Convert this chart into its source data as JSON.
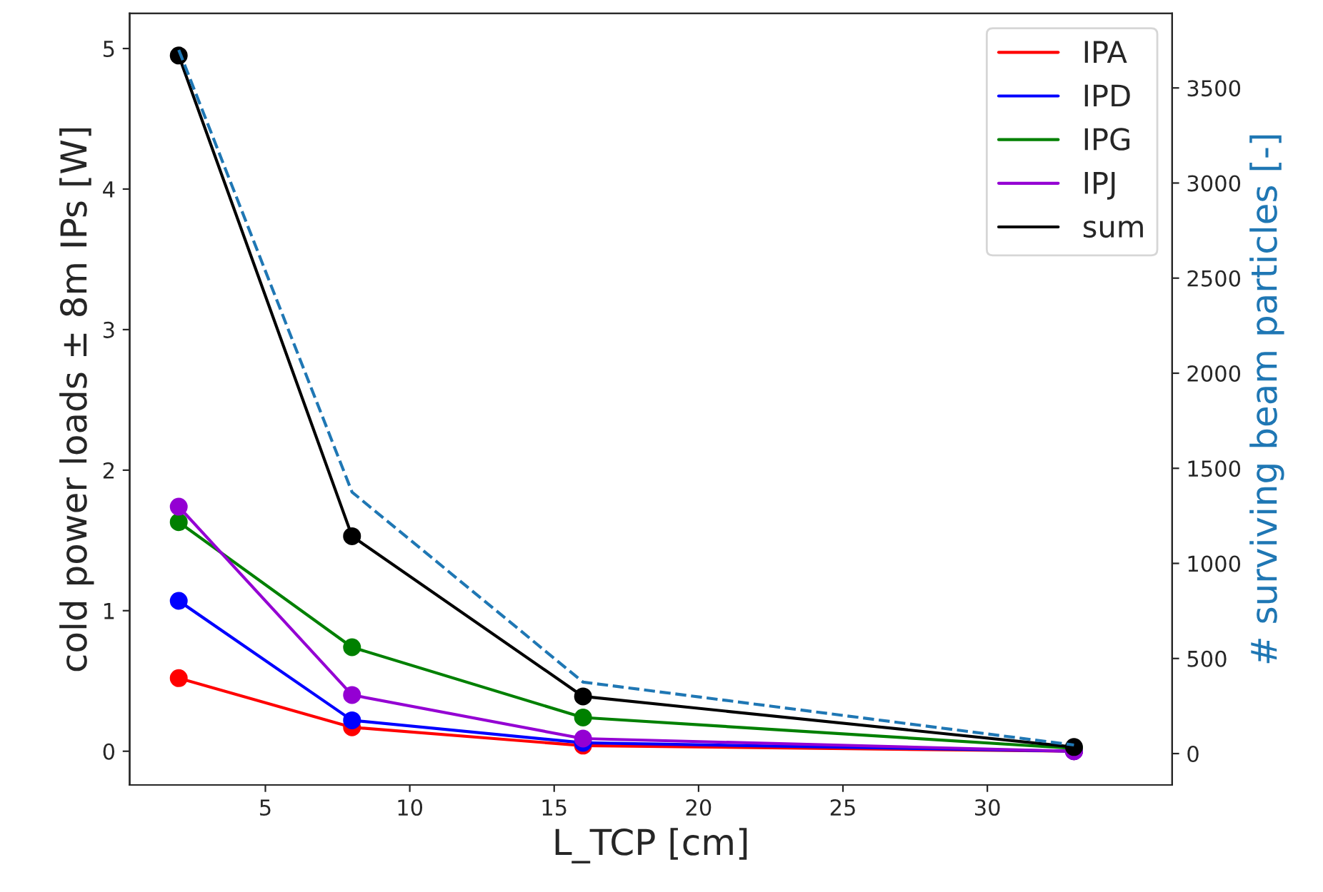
{
  "chart_data": {
    "type": "line",
    "xlabel": "L_TCP [cm]",
    "ylabel": "cold power loads ± 8m IPs [W]",
    "y2label": "# surviving beam particles [-]",
    "x": [
      2,
      8,
      16,
      33
    ],
    "series": [
      {
        "name": "IPA",
        "color": "#ff0000",
        "values": [
          0.52,
          0.17,
          0.04,
          0.0
        ],
        "marker": "circle"
      },
      {
        "name": "IPD",
        "color": "#0000ff",
        "values": [
          1.07,
          0.22,
          0.06,
          0.0
        ],
        "marker": "circle"
      },
      {
        "name": "IPG",
        "color": "#008000",
        "values": [
          1.63,
          0.74,
          0.24,
          0.02
        ],
        "marker": "circle"
      },
      {
        "name": "IPJ",
        "color": "#9400d3",
        "values": [
          1.74,
          0.4,
          0.09,
          0.0
        ],
        "marker": "circle"
      },
      {
        "name": "sum",
        "color": "#000000",
        "values": [
          4.95,
          1.53,
          0.39,
          0.03
        ],
        "marker": "circle"
      },
      {
        "color": "#1f77b4",
        "values": [
          3700,
          1375,
          376,
          45
        ],
        "axis": "y2",
        "line_style": "dashed",
        "marker": "none"
      }
    ],
    "xlim": [
      0.3,
      36.4
    ],
    "xticks": [
      5,
      10,
      15,
      20,
      25,
      30
    ],
    "ylim": [
      -0.24,
      5.25
    ],
    "yticks": [
      0,
      1,
      2,
      3,
      4,
      5
    ],
    "y2lim": [
      -165,
      3892
    ],
    "y2ticks": [
      0,
      500,
      1000,
      1500,
      2000,
      2500,
      3000,
      3500
    ],
    "legend": "top right",
    "grid": false
  }
}
